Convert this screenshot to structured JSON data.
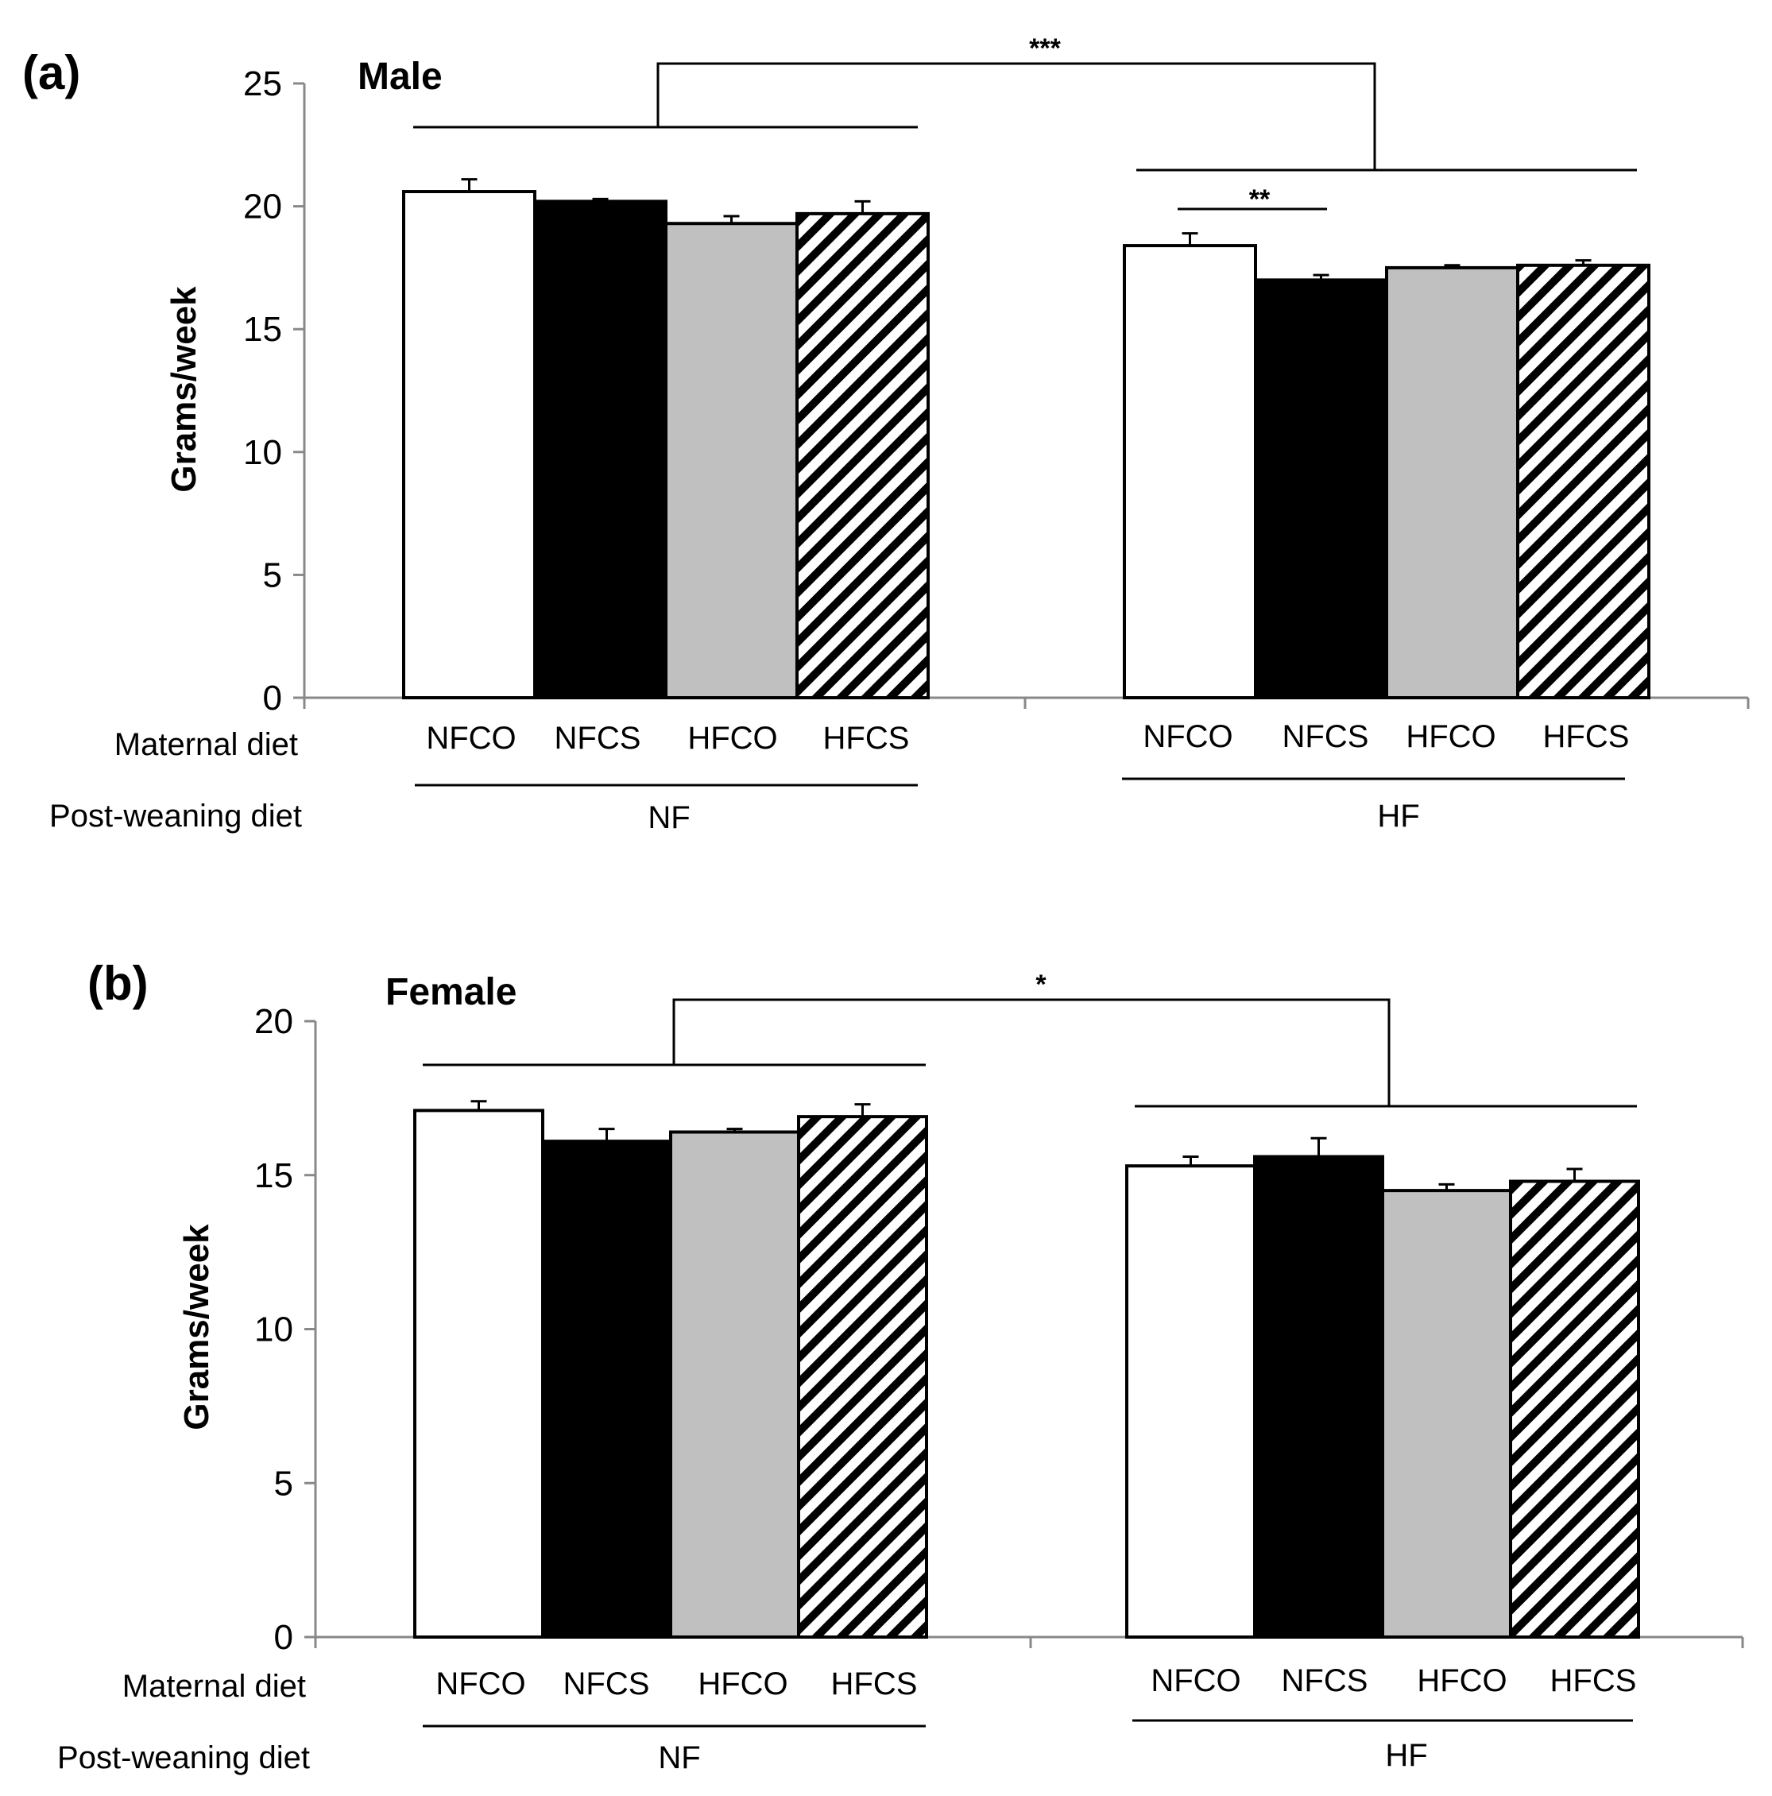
{
  "chart_data": [
    {
      "type": "bar",
      "panel_label": "(a)",
      "title": "Male",
      "ylabel": "Grams/week",
      "ylim": [
        0,
        25
      ],
      "yticks": [
        0,
        5,
        10,
        15,
        20,
        25
      ],
      "row_labels": {
        "maternal": "Maternal diet",
        "post_weaning": "Post-weaning diet"
      },
      "series_names": [
        "NFCO",
        "NFCS",
        "HFCO",
        "HFCS"
      ],
      "series_colors": [
        "#ffffff",
        "#000000",
        "#c0c0c0",
        "hatch"
      ],
      "groups": [
        {
          "name": "NF",
          "categories": [
            "NFCO",
            "NFCS",
            "HFCO",
            "HFCS"
          ],
          "values": [
            20.6,
            20.2,
            19.3,
            19.7
          ],
          "errors": [
            0.5,
            0.1,
            0.3,
            0.5
          ]
        },
        {
          "name": "HF",
          "categories": [
            "NFCO",
            "NFCS",
            "HFCO",
            "HFCS"
          ],
          "values": [
            18.4,
            17.0,
            17.5,
            17.6
          ],
          "errors": [
            0.5,
            0.2,
            0.1,
            0.2
          ]
        }
      ],
      "significance": [
        {
          "label": "***",
          "between": "NF vs HF"
        },
        {
          "label": "**",
          "between": "HF: NFCO vs NFCS"
        }
      ]
    },
    {
      "type": "bar",
      "panel_label": "(b)",
      "title": "Female",
      "ylabel": "Grams/week",
      "ylim": [
        0,
        20
      ],
      "yticks": [
        0,
        5,
        10,
        15,
        20
      ],
      "row_labels": {
        "maternal": "Maternal diet",
        "post_weaning": "Post-weaning diet"
      },
      "series_names": [
        "NFCO",
        "NFCS",
        "HFCO",
        "HFCS"
      ],
      "series_colors": [
        "#ffffff",
        "#000000",
        "#c0c0c0",
        "hatch"
      ],
      "groups": [
        {
          "name": "NF",
          "categories": [
            "NFCO",
            "NFCS",
            "HFCO",
            "HFCS"
          ],
          "values": [
            17.1,
            16.1,
            16.4,
            16.9
          ],
          "errors": [
            0.3,
            0.4,
            0.1,
            0.4
          ]
        },
        {
          "name": "HF",
          "categories": [
            "NFCO",
            "NFCS",
            "HFCO",
            "HFCS"
          ],
          "values": [
            15.3,
            15.6,
            14.5,
            14.8
          ],
          "errors": [
            0.3,
            0.6,
            0.2,
            0.4
          ]
        }
      ],
      "significance": [
        {
          "label": "*",
          "between": "NF vs HF"
        }
      ]
    }
  ]
}
